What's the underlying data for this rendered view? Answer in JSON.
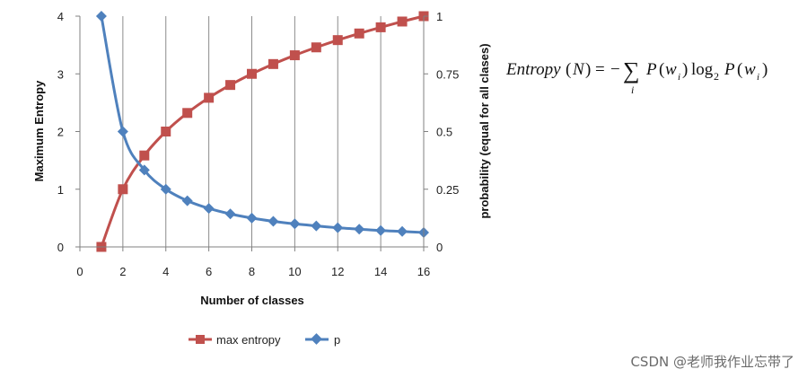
{
  "chart_data": {
    "type": "line",
    "title": "",
    "xlabel": "Number of classes",
    "ylabel": "Maximum Entropy",
    "y2label": "probability (equal for all clases)",
    "xlim": [
      0,
      16
    ],
    "ylim": [
      0,
      4
    ],
    "y2lim": [
      0,
      1
    ],
    "xticks": [
      0,
      2,
      4,
      6,
      8,
      10,
      12,
      14,
      16
    ],
    "yticks": [
      0,
      1,
      2,
      3,
      4
    ],
    "y2ticks": [
      "0",
      "0.25",
      "0.5",
      "0.75",
      "1"
    ],
    "grid": "vertical",
    "legend": "bottom",
    "series": [
      {
        "name": "max entropy",
        "axis": "left",
        "color": "#C0504D",
        "marker": "square",
        "x": [
          1,
          2,
          3,
          4,
          5,
          6,
          7,
          8,
          9,
          10,
          11,
          12,
          13,
          14,
          15,
          16
        ],
        "y": [
          0,
          1,
          1.585,
          2,
          2.322,
          2.585,
          2.807,
          3,
          3.17,
          3.322,
          3.459,
          3.585,
          3.7,
          3.807,
          3.907,
          4
        ]
      },
      {
        "name": "p",
        "axis": "right",
        "color": "#4F81BD",
        "marker": "diamond",
        "x": [
          1,
          2,
          3,
          4,
          5,
          6,
          7,
          8,
          9,
          10,
          11,
          12,
          13,
          14,
          15,
          16
        ],
        "y": [
          1,
          0.5,
          0.333,
          0.25,
          0.2,
          0.167,
          0.143,
          0.125,
          0.111,
          0.1,
          0.091,
          0.083,
          0.077,
          0.071,
          0.067,
          0.0625
        ]
      }
    ]
  },
  "formula": {
    "lhs": "Entropy",
    "arg": "N",
    "sum_index": "i",
    "p_symbol": "P",
    "w_symbol": "w",
    "sub": "i",
    "log": "log",
    "log_base": "2"
  },
  "watermark": "CSDN @老师我作业忘带了"
}
